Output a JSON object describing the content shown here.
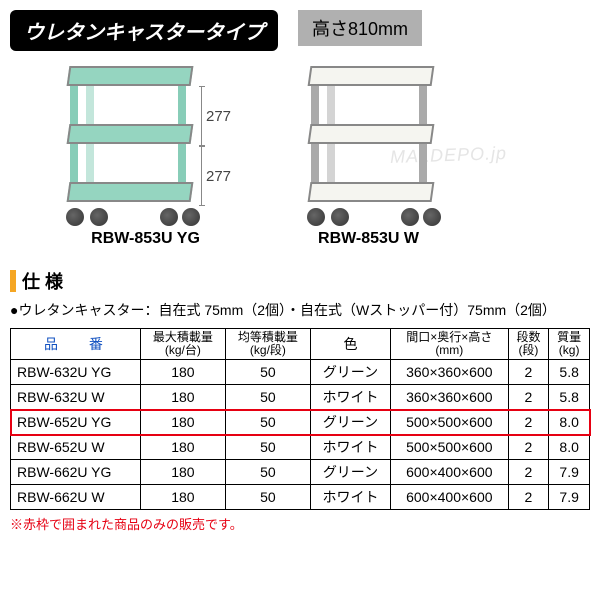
{
  "header": {
    "title": "ウレタンキャスタータイプ",
    "height_label": "高さ810mm"
  },
  "illustrations": {
    "dim_upper": "277",
    "dim_lower": "277",
    "left_label": "RBW-853U YG",
    "right_label": "RBW-853U W",
    "colors": {
      "green_shelf": "#95d5c0",
      "white_shelf": "#f5f5f0",
      "leg": "#aaaaaa",
      "wheel": "#444444"
    },
    "watermark": "MALDEPO.jp"
  },
  "spec_section": {
    "heading": "仕 様",
    "note": "●ウレタンキャスター：自在式 75mm（2個）・自在式（Wストッパー付）75mm（2個）"
  },
  "table": {
    "columns": {
      "model": "品　番",
      "max_load": "最大積載量\n(kg/台)",
      "even_load": "均等積載量\n(kg/段)",
      "color": "色",
      "dimensions": "間口×奥行×高さ\n(mm)",
      "shelves": "段数\n(段)",
      "mass": "質量\n(kg)"
    },
    "rows": [
      {
        "model": "RBW-632U YG",
        "max": "180",
        "even": "50",
        "color": "グリーン",
        "dim": "360×360×600",
        "shelves": "2",
        "mass": "5.8",
        "hl": false
      },
      {
        "model": "RBW-632U W",
        "max": "180",
        "even": "50",
        "color": "ホワイト",
        "dim": "360×360×600",
        "shelves": "2",
        "mass": "5.8",
        "hl": false
      },
      {
        "model": "RBW-652U YG",
        "max": "180",
        "even": "50",
        "color": "グリーン",
        "dim": "500×500×600",
        "shelves": "2",
        "mass": "8.0",
        "hl": true
      },
      {
        "model": "RBW-652U W",
        "max": "180",
        "even": "50",
        "color": "ホワイト",
        "dim": "500×500×600",
        "shelves": "2",
        "mass": "8.0",
        "hl": false
      },
      {
        "model": "RBW-662U YG",
        "max": "180",
        "even": "50",
        "color": "グリーン",
        "dim": "600×400×600",
        "shelves": "2",
        "mass": "7.9",
        "hl": false
      },
      {
        "model": "RBW-662U W",
        "max": "180",
        "even": "50",
        "color": "ホワイト",
        "dim": "600×400×600",
        "shelves": "2",
        "mass": "7.9",
        "hl": false
      }
    ]
  },
  "footnote": "※赤枠で囲まれた商品のみの販売です。",
  "styling": {
    "title_bg": "#000000",
    "title_fg": "#ffffff",
    "height_bg": "#b0b0b0",
    "spec_bar": "#f5a623",
    "highlight_border": "#e60012",
    "header_text_color": "#1050c0"
  }
}
